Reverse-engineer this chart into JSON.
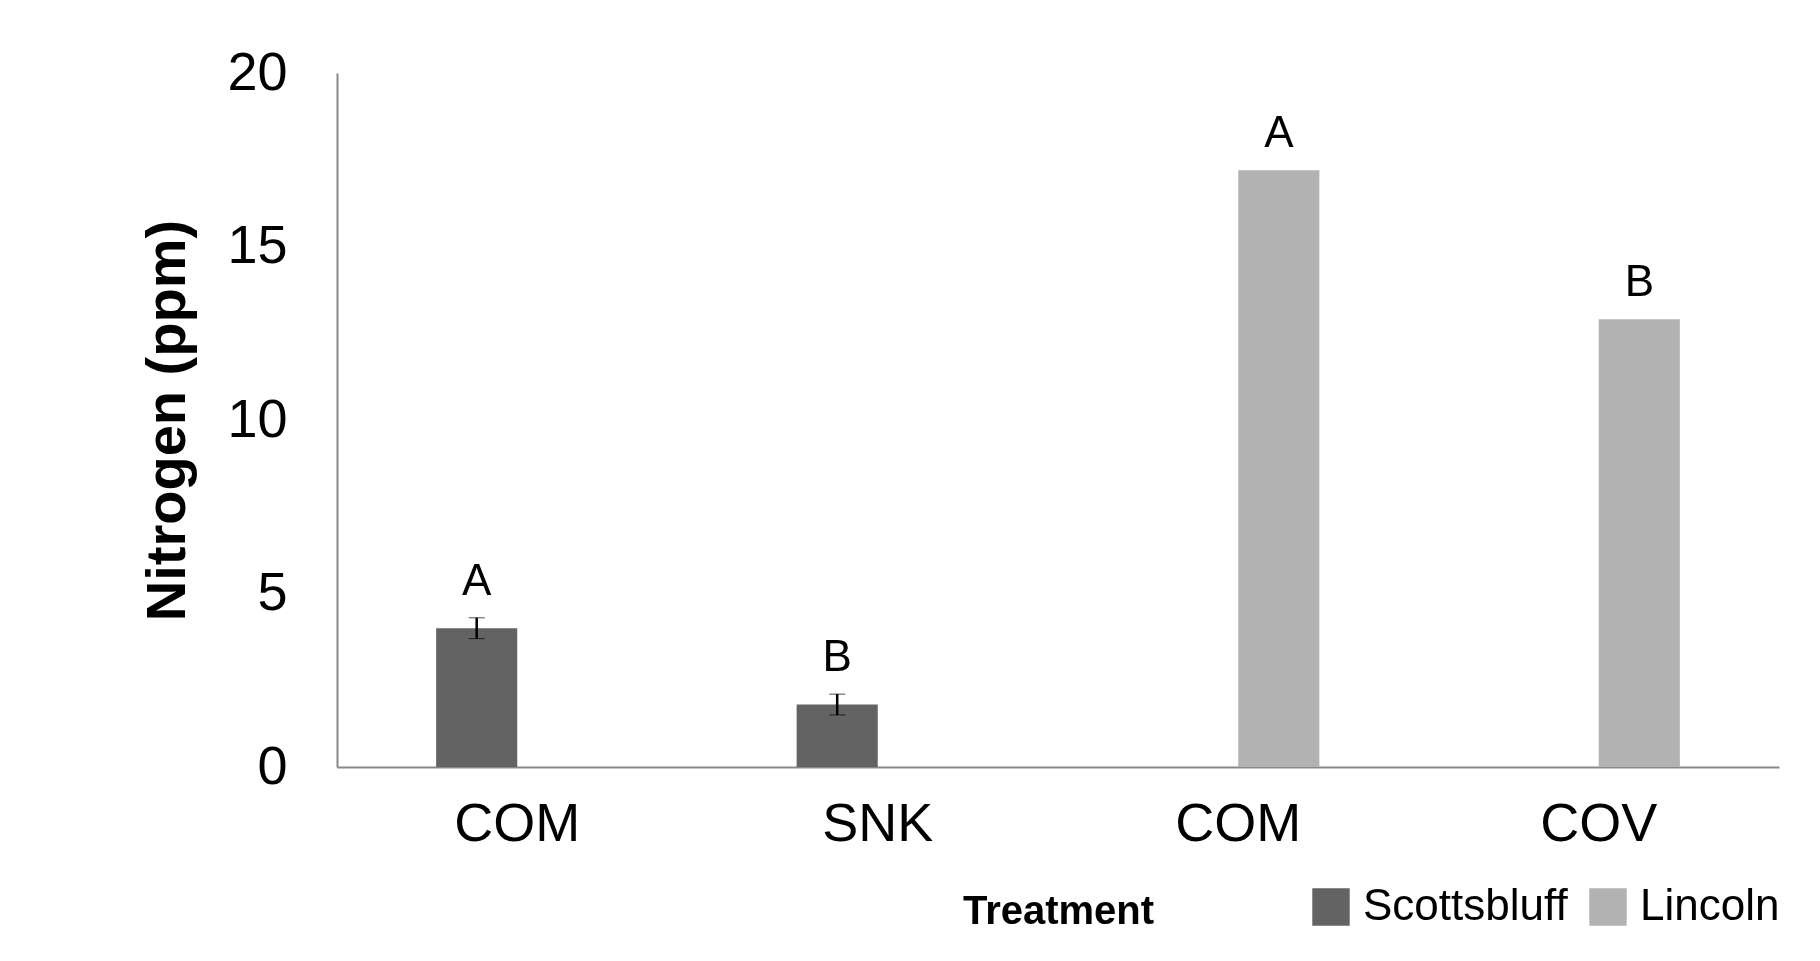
{
  "chart_data": {
    "type": "bar",
    "xlabel": "Treatment",
    "ylabel": "Nitrogen (ppm)",
    "categories": [
      "COM",
      "SNK",
      "COM",
      "COV"
    ],
    "series": [
      {
        "name": "Scottsbluff",
        "color": "#636363",
        "values": [
          4.0,
          1.8,
          null,
          null
        ],
        "errors": [
          0.3,
          0.3,
          null,
          null
        ]
      },
      {
        "name": "Lincoln",
        "color": "#b2b2b2",
        "values": [
          null,
          null,
          17.2,
          12.9
        ]
      }
    ],
    "ylim": [
      0,
      20
    ],
    "yticks": [
      0,
      5,
      10,
      15,
      20
    ],
    "grid": false,
    "legend": "bottom right",
    "annotations": [
      "A",
      "B",
      "A",
      "B"
    ]
  }
}
